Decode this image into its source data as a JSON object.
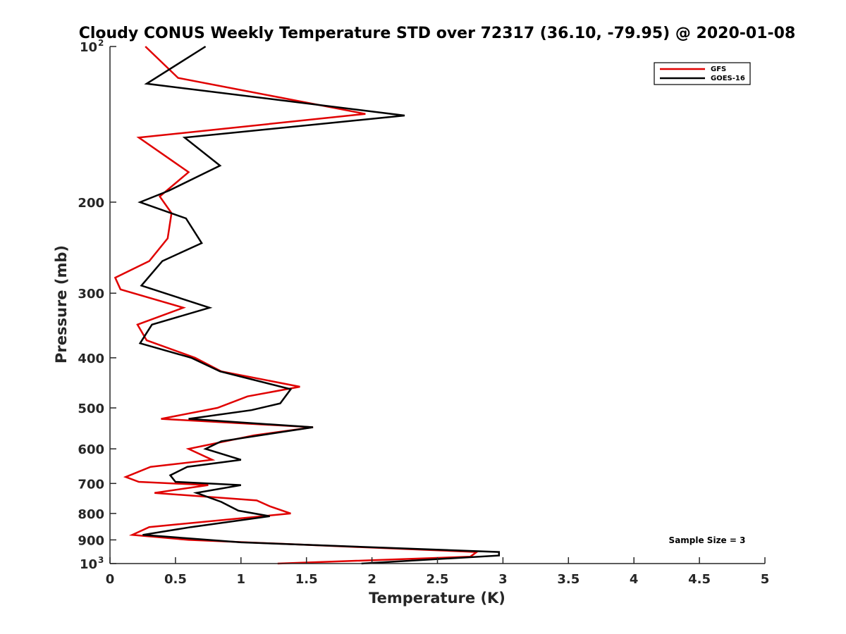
{
  "chart_data": {
    "type": "line",
    "title": "Cloudy CONUS Weekly Temperature STD over 72317 (36.10, -79.95) @ 2020-01-08",
    "xlabel": "Temperature (K)",
    "ylabel": "Pressure (mb)",
    "xlim": [
      0,
      5
    ],
    "ylim": [
      100,
      1000
    ],
    "y_scale": "log",
    "y_reversed": true,
    "grid": false,
    "legend_position": "top-right",
    "x_ticks": [
      "0",
      "0.5",
      "1",
      "1.5",
      "2",
      "2.5",
      "3",
      "3.5",
      "4",
      "4.5",
      "5"
    ],
    "y_ticks": [
      {
        "value": 100,
        "base": "10",
        "exp": "2"
      },
      {
        "value": 200,
        "label": "200"
      },
      {
        "value": 300,
        "label": "300"
      },
      {
        "value": 400,
        "label": "400"
      },
      {
        "value": 500,
        "label": "500"
      },
      {
        "value": 600,
        "label": "600"
      },
      {
        "value": 700,
        "label": "700"
      },
      {
        "value": 800,
        "label": "800"
      },
      {
        "value": 900,
        "label": "900"
      },
      {
        "value": 1000,
        "base": "10",
        "exp": "3"
      }
    ],
    "annotation": "Sample Size = 3",
    "series": [
      {
        "name": "GFS",
        "color": "#e00000",
        "points": [
          {
            "p": 100,
            "t": 0.27
          },
          {
            "p": 115,
            "t": 0.52
          },
          {
            "p": 135,
            "t": 1.95
          },
          {
            "p": 150,
            "t": 0.22
          },
          {
            "p": 175,
            "t": 0.6
          },
          {
            "p": 195,
            "t": 0.38
          },
          {
            "p": 210,
            "t": 0.47
          },
          {
            "p": 235,
            "t": 0.44
          },
          {
            "p": 260,
            "t": 0.3
          },
          {
            "p": 280,
            "t": 0.04
          },
          {
            "p": 295,
            "t": 0.08
          },
          {
            "p": 320,
            "t": 0.56
          },
          {
            "p": 345,
            "t": 0.21
          },
          {
            "p": 370,
            "t": 0.28
          },
          {
            "p": 400,
            "t": 0.65
          },
          {
            "p": 425,
            "t": 0.85
          },
          {
            "p": 455,
            "t": 1.45
          },
          {
            "p": 475,
            "t": 1.05
          },
          {
            "p": 500,
            "t": 0.82
          },
          {
            "p": 525,
            "t": 0.39
          },
          {
            "p": 545,
            "t": 1.55
          },
          {
            "p": 565,
            "t": 1.1
          },
          {
            "p": 600,
            "t": 0.6
          },
          {
            "p": 630,
            "t": 0.78
          },
          {
            "p": 650,
            "t": 0.31
          },
          {
            "p": 680,
            "t": 0.12
          },
          {
            "p": 695,
            "t": 0.22
          },
          {
            "p": 705,
            "t": 0.75
          },
          {
            "p": 730,
            "t": 0.34
          },
          {
            "p": 755,
            "t": 1.12
          },
          {
            "p": 775,
            "t": 1.22
          },
          {
            "p": 800,
            "t": 1.38
          },
          {
            "p": 850,
            "t": 0.3
          },
          {
            "p": 880,
            "t": 0.17
          },
          {
            "p": 900,
            "t": 0.6
          },
          {
            "p": 950,
            "t": 2.8
          },
          {
            "p": 970,
            "t": 2.75
          },
          {
            "p": 1000,
            "t": 1.28
          }
        ]
      },
      {
        "name": "GOES-16",
        "color": "#000000",
        "points": [
          {
            "p": 100,
            "t": 0.73
          },
          {
            "p": 118,
            "t": 0.28
          },
          {
            "p": 136,
            "t": 2.25
          },
          {
            "p": 150,
            "t": 0.57
          },
          {
            "p": 170,
            "t": 0.84
          },
          {
            "p": 190,
            "t": 0.45
          },
          {
            "p": 200,
            "t": 0.23
          },
          {
            "p": 215,
            "t": 0.58
          },
          {
            "p": 240,
            "t": 0.7
          },
          {
            "p": 260,
            "t": 0.4
          },
          {
            "p": 290,
            "t": 0.24
          },
          {
            "p": 320,
            "t": 0.76
          },
          {
            "p": 345,
            "t": 0.32
          },
          {
            "p": 375,
            "t": 0.23
          },
          {
            "p": 400,
            "t": 0.62
          },
          {
            "p": 425,
            "t": 0.84
          },
          {
            "p": 460,
            "t": 1.38
          },
          {
            "p": 490,
            "t": 1.3
          },
          {
            "p": 505,
            "t": 1.08
          },
          {
            "p": 525,
            "t": 0.6
          },
          {
            "p": 545,
            "t": 1.55
          },
          {
            "p": 580,
            "t": 0.85
          },
          {
            "p": 600,
            "t": 0.73
          },
          {
            "p": 630,
            "t": 1.0
          },
          {
            "p": 650,
            "t": 0.59
          },
          {
            "p": 675,
            "t": 0.46
          },
          {
            "p": 695,
            "t": 0.5
          },
          {
            "p": 705,
            "t": 1.0
          },
          {
            "p": 730,
            "t": 0.66
          },
          {
            "p": 760,
            "t": 0.85
          },
          {
            "p": 790,
            "t": 0.98
          },
          {
            "p": 810,
            "t": 1.22
          },
          {
            "p": 850,
            "t": 0.62
          },
          {
            "p": 880,
            "t": 0.25
          },
          {
            "p": 910,
            "t": 1.0
          },
          {
            "p": 950,
            "t": 2.97
          },
          {
            "p": 965,
            "t": 2.97
          },
          {
            "p": 1000,
            "t": 1.92
          }
        ]
      }
    ]
  }
}
